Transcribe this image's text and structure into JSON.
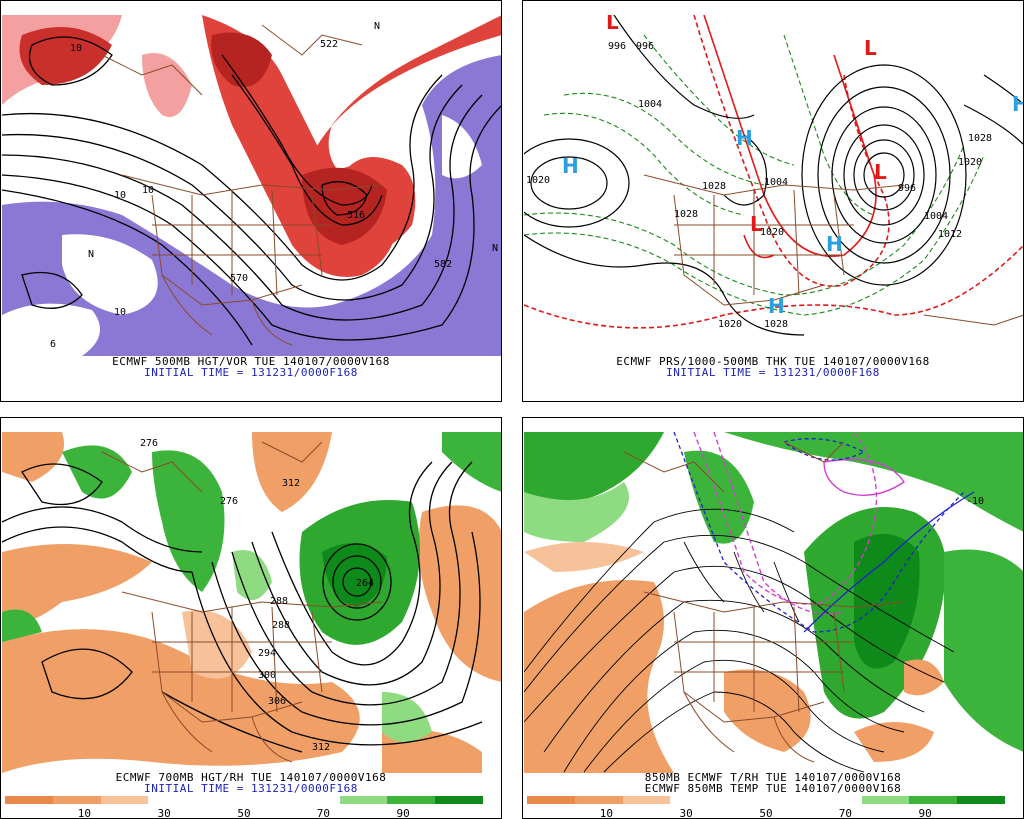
{
  "panels": [
    {
      "caption1": "ECMWF 500MB HGT/VOR TUE 140107/0000V168",
      "caption2": "INITIAL TIME = 131231/0000F168",
      "labels": [
        "522",
        "570",
        "582",
        "516",
        "10",
        "10",
        "10",
        "10",
        "6",
        "N",
        "N",
        "N"
      ]
    },
    {
      "caption1": "ECMWF PRS/1000-500MB THK TUE 140107/0000V168",
      "caption2": "INITIAL TIME = 131231/0000F168",
      "labels": [
        "1020",
        "1020",
        "1028",
        "1028",
        "1028",
        "1020",
        "1004",
        "1012",
        "1028",
        "1020",
        "996",
        "1004",
        "1004",
        "996",
        "996"
      ],
      "highs_lows": [
        "H",
        "H",
        "H",
        "H",
        "H",
        "L",
        "L",
        "L",
        "L"
      ]
    },
    {
      "caption1": "ECMWF 700MB HGT/RH TUE 140107/0000V168",
      "caption2": "INITIAL TIME = 131231/0000F168",
      "labels": [
        "276",
        "276",
        "312",
        "288",
        "288",
        "294",
        "300",
        "306",
        "312",
        "264"
      ]
    },
    {
      "caption1": "850MB ECMWF T/RH TUE 140107/0000V168",
      "caption2": "ECMWF 850MB TEMP TUE 140107/0000V168",
      "labels": [
        "-10"
      ]
    }
  ],
  "legend": {
    "ticks": [
      "10",
      "30",
      "50",
      "70",
      "90"
    ],
    "colors": [
      "#e8884a",
      "#f0a066",
      "#f7c29a",
      "#ffffff",
      "#ffffff",
      "#ffffff",
      "#ffffff",
      "#8fdb82",
      "#3cb43c",
      "#0e8a1a"
    ]
  },
  "colors": {
    "vorticity_red": "#e0423c",
    "vorticity_pink": "#f4a0a0",
    "vorticity_purple": "#8a78d4",
    "state_lines": "#8b4a2a",
    "thickness_red": "#e01818",
    "thickness_green": "#1a8a1a",
    "high_low_blue": "#2ba0e0",
    "rh_green": "#2fa82f",
    "rh_orange": "#f0a066",
    "temp_magenta": "#d040d0",
    "temp_blue": "#2020d0"
  }
}
